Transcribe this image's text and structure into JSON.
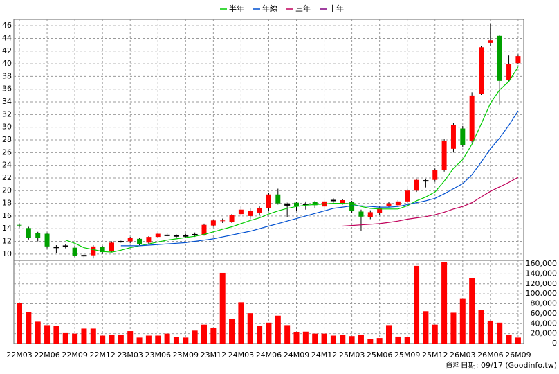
{
  "chart_data": [
    {
      "type": "candlestick",
      "categories": [
        "22M03",
        null,
        null,
        "22M06",
        null,
        null,
        "22M09",
        null,
        null,
        "22M12",
        null,
        null,
        "23M03",
        null,
        null,
        "23M06",
        null,
        null,
        "23M09",
        null,
        null,
        "23M12",
        null,
        null,
        "24M03",
        null,
        null,
        "24M06",
        null,
        null,
        "24M09",
        null,
        null,
        "24M12",
        null,
        null,
        "25M03",
        null,
        null,
        "25M06",
        null,
        null,
        "25M09",
        null,
        null,
        "25M12",
        null,
        null,
        "26M03",
        null,
        null,
        "26M06",
        null,
        null,
        "26M09"
      ],
      "open": [
        14.6,
        14.1,
        13.3,
        13.2,
        11.1,
        11.3,
        11.0,
        9.8,
        9.8,
        11.1,
        10.4,
        12.0,
        12.0,
        12.4,
        11.8,
        12.7,
        13.0,
        12.9,
        12.9,
        13.1,
        13.0,
        14.5,
        15.2,
        15.1,
        16.3,
        16.0,
        16.5,
        17.2,
        19.4,
        17.8,
        18.1,
        17.9,
        18.2,
        17.5,
        18.5,
        18.0,
        18.2,
        16.7,
        15.8,
        16.5,
        17.6,
        17.7,
        18.3,
        20.0,
        21.6,
        21.7,
        23.3,
        26.6,
        29.8,
        27.8,
        35.3,
        43.3,
        44.4,
        37.5,
        40.1
      ],
      "high": [
        14.8,
        14.3,
        13.5,
        13.4,
        11.4,
        11.6,
        11.3,
        10.0,
        11.4,
        11.3,
        12.0,
        12.1,
        12.7,
        12.5,
        12.8,
        13.3,
        13.3,
        13.1,
        13.2,
        13.4,
        14.8,
        15.4,
        15.6,
        16.3,
        17.5,
        17.2,
        17.5,
        19.7,
        20.3,
        18.1,
        18.2,
        18.3,
        18.4,
        18.5,
        18.8,
        18.7,
        18.4,
        17.0,
        16.9,
        17.6,
        18.2,
        18.5,
        20.3,
        21.9,
        21.9,
        23.5,
        28.2,
        30.7,
        30.2,
        35.5,
        42.8,
        46.4,
        44.5,
        41.3,
        41.5
      ],
      "low": [
        14.2,
        12.3,
        12.0,
        10.9,
        10.2,
        10.9,
        9.5,
        9.3,
        9.3,
        10.0,
        10.3,
        11.8,
        11.7,
        11.4,
        11.6,
        12.5,
        12.8,
        12.5,
        12.6,
        12.7,
        12.9,
        14.3,
        14.9,
        14.9,
        16.0,
        15.5,
        16.2,
        16.8,
        17.8,
        15.8,
        16.8,
        17.0,
        17.2,
        16.8,
        18.1,
        17.8,
        16.5,
        13.7,
        15.5,
        16.2,
        17.4,
        17.5,
        18.0,
        19.8,
        20.5,
        21.4,
        23.0,
        26.0,
        26.9,
        27.6,
        35.1,
        42.8,
        33.6,
        37.2,
        40.0
      ],
      "close": [
        14.5,
        12.5,
        12.6,
        11.2,
        11.1,
        11.3,
        9.7,
        9.8,
        11.2,
        10.3,
        11.8,
        12.0,
        12.5,
        11.6,
        12.7,
        13.2,
        13.0,
        12.9,
        12.9,
        13.1,
        14.6,
        15.3,
        15.3,
        16.2,
        17.0,
        16.8,
        17.3,
        19.4,
        18.0,
        17.8,
        17.6,
        17.9,
        17.7,
        18.3,
        18.5,
        18.5,
        16.8,
        15.9,
        16.6,
        17.3,
        18.0,
        18.3,
        20.0,
        21.7,
        21.6,
        23.2,
        27.8,
        30.3,
        27.2,
        35.0,
        42.6,
        43.7,
        37.3,
        39.9,
        41.2
      ],
      "up_color": "#ff0000",
      "down_color": "#00a000",
      "series": [
        {
          "name": "半年",
          "color": "#00cc00",
          "values": [
            null,
            null,
            null,
            null,
            null,
            12.2,
            11.7,
            11.0,
            10.7,
            10.4,
            10.3,
            10.6,
            11.0,
            11.3,
            11.6,
            11.9,
            12.2,
            12.4,
            12.6,
            12.8,
            13.1,
            13.5,
            13.9,
            14.3,
            14.8,
            15.3,
            15.7,
            16.3,
            16.8,
            17.2,
            17.5,
            17.7,
            17.8,
            17.9,
            18.0,
            18.0,
            17.9,
            17.5,
            17.2,
            17.1,
            17.1,
            17.1,
            17.6,
            18.4,
            19.0,
            19.8,
            21.5,
            23.5,
            24.9,
            27.3,
            30.5,
            33.8,
            35.9,
            37.2,
            39.5
          ]
        },
        {
          "name": "年線",
          "color": "#0050d0",
          "values": [
            null,
            null,
            null,
            null,
            null,
            null,
            null,
            null,
            null,
            null,
            null,
            11.3,
            11.3,
            11.3,
            11.4,
            11.5,
            11.6,
            11.7,
            11.8,
            12.0,
            12.2,
            12.4,
            12.7,
            13.0,
            13.3,
            13.6,
            14.0,
            14.4,
            14.8,
            15.2,
            15.6,
            16.0,
            16.4,
            16.8,
            17.2,
            17.4,
            17.6,
            17.6,
            17.5,
            17.4,
            17.4,
            17.5,
            17.8,
            18.1,
            18.4,
            18.8,
            19.5,
            20.3,
            21.1,
            22.5,
            24.5,
            26.6,
            28.3,
            30.3,
            32.6
          ]
        },
        {
          "name": "三年",
          "color": "#c0005a",
          "values": [
            null,
            null,
            null,
            null,
            null,
            null,
            null,
            null,
            null,
            null,
            null,
            null,
            null,
            null,
            null,
            null,
            null,
            null,
            null,
            null,
            null,
            null,
            null,
            null,
            null,
            null,
            null,
            null,
            null,
            null,
            null,
            null,
            null,
            null,
            null,
            14.4,
            14.5,
            14.6,
            14.7,
            14.8,
            15.0,
            15.2,
            15.5,
            15.7,
            15.9,
            16.2,
            16.6,
            17.1,
            17.5,
            18.1,
            19.0,
            19.9,
            20.6,
            21.3,
            22.1
          ]
        },
        {
          "name": "十年",
          "color": "#800080",
          "values": [
            null,
            null,
            null,
            null,
            null,
            null,
            null,
            null,
            null,
            null,
            null,
            null,
            null,
            null,
            null,
            null,
            null,
            null,
            null,
            null,
            null,
            null,
            null,
            null,
            null,
            null,
            null,
            null,
            null,
            null,
            null,
            null,
            null,
            null,
            null,
            null,
            null,
            null,
            null,
            null,
            null,
            null,
            null,
            null,
            null,
            null,
            null,
            null,
            null,
            null,
            null,
            null,
            null,
            null,
            null
          ]
        }
      ],
      "ylim": [
        9,
        47
      ],
      "yticks": [
        10,
        12,
        14,
        16,
        18,
        20,
        22,
        24,
        26,
        28,
        30,
        32,
        34,
        36,
        38,
        40,
        42,
        44,
        46
      ],
      "grid": true,
      "legend": "top"
    },
    {
      "type": "bar",
      "values": [
        82000,
        64000,
        44000,
        37000,
        35000,
        21000,
        20000,
        30000,
        30000,
        16000,
        17000,
        17000,
        25000,
        12000,
        16000,
        16000,
        20000,
        13000,
        12000,
        26000,
        38000,
        32000,
        142000,
        50000,
        83000,
        61000,
        36000,
        42000,
        56000,
        37000,
        23000,
        24000,
        20000,
        20000,
        16000,
        17000,
        15000,
        17000,
        9000,
        11000,
        37000,
        14000,
        13000,
        156000,
        65000,
        38000,
        163000,
        62000,
        91000,
        132000,
        67000,
        46000,
        42000,
        17000,
        12000
      ],
      "color": "#ff0000",
      "ylim": [
        0,
        167000
      ],
      "yticks": [
        0,
        {
          "value": 20000,
          "label": "20,000"
        },
        {
          "value": 40000,
          "label": "40,000"
        },
        {
          "value": 60000,
          "label": "60,000"
        },
        {
          "value": 80000,
          "label": "80,000"
        },
        {
          "value": 100000,
          "label": "100,000"
        },
        {
          "value": 120000,
          "label": "120,000"
        },
        {
          "value": 140000,
          "label": "140,000"
        },
        {
          "value": 160000,
          "label": "160,000"
        }
      ],
      "grid": true,
      "annotation": "資料日期: 09/17 (Goodinfo.tw)"
    }
  ]
}
